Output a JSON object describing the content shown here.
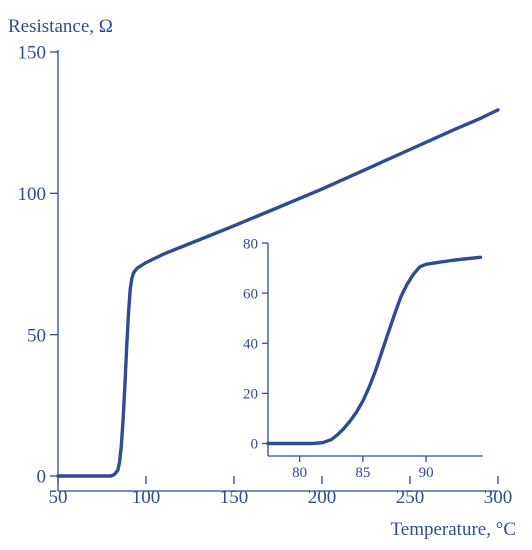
{
  "colors": {
    "ink": "#2f4c93",
    "background": "#ffffff"
  },
  "chart_data": [
    {
      "type": "line",
      "title": "",
      "ylabel": "Resistance, Ω",
      "xlabel": "Temperature, °C",
      "xlim": [
        50,
        300
      ],
      "ylim": [
        0,
        150
      ],
      "xticks": [
        50,
        100,
        150,
        200,
        250,
        300
      ],
      "yticks": [
        0,
        50,
        100,
        150
      ],
      "grid": false,
      "series": [
        {
          "x": [
            50,
            60,
            70,
            80,
            82,
            84,
            85,
            86,
            87,
            88,
            89,
            90,
            91,
            92,
            93,
            95,
            100,
            110,
            120,
            130,
            150,
            175,
            200,
            225,
            250,
            275,
            290,
            300
          ],
          "y": [
            0,
            0,
            0,
            0,
            0.5,
            2,
            5,
            11,
            20,
            32,
            45,
            57,
            66,
            70,
            72,
            73.5,
            75.5,
            78.5,
            81,
            83.5,
            88.5,
            95,
            101.5,
            108.5,
            115.5,
            122.5,
            126.5,
            129.5
          ]
        }
      ]
    },
    {
      "type": "line",
      "title": "",
      "xlim": [
        77.5,
        94.5
      ],
      "ylim": [
        -5,
        80
      ],
      "xticks": [
        80,
        85,
        90
      ],
      "yticks": [
        0,
        20,
        40,
        60,
        80
      ],
      "grid": false,
      "legend": "none",
      "placement": "inset lower-right",
      "series": [
        {
          "x": [
            77.5,
            79,
            80,
            81,
            81.8,
            82.5,
            83,
            83.5,
            84,
            84.5,
            85,
            85.5,
            86,
            86.5,
            87,
            87.5,
            88,
            88.5,
            89,
            89.5,
            90,
            91,
            92,
            93,
            94.3
          ],
          "y": [
            0,
            0,
            0,
            0,
            0.3,
            1.5,
            3.5,
            6,
            9,
            12.5,
            17,
            22.5,
            29,
            36.5,
            44,
            51.5,
            58.5,
            63.5,
            67.5,
            70.5,
            71.5,
            72.3,
            73,
            73.6,
            74.3
          ]
        }
      ]
    }
  ]
}
